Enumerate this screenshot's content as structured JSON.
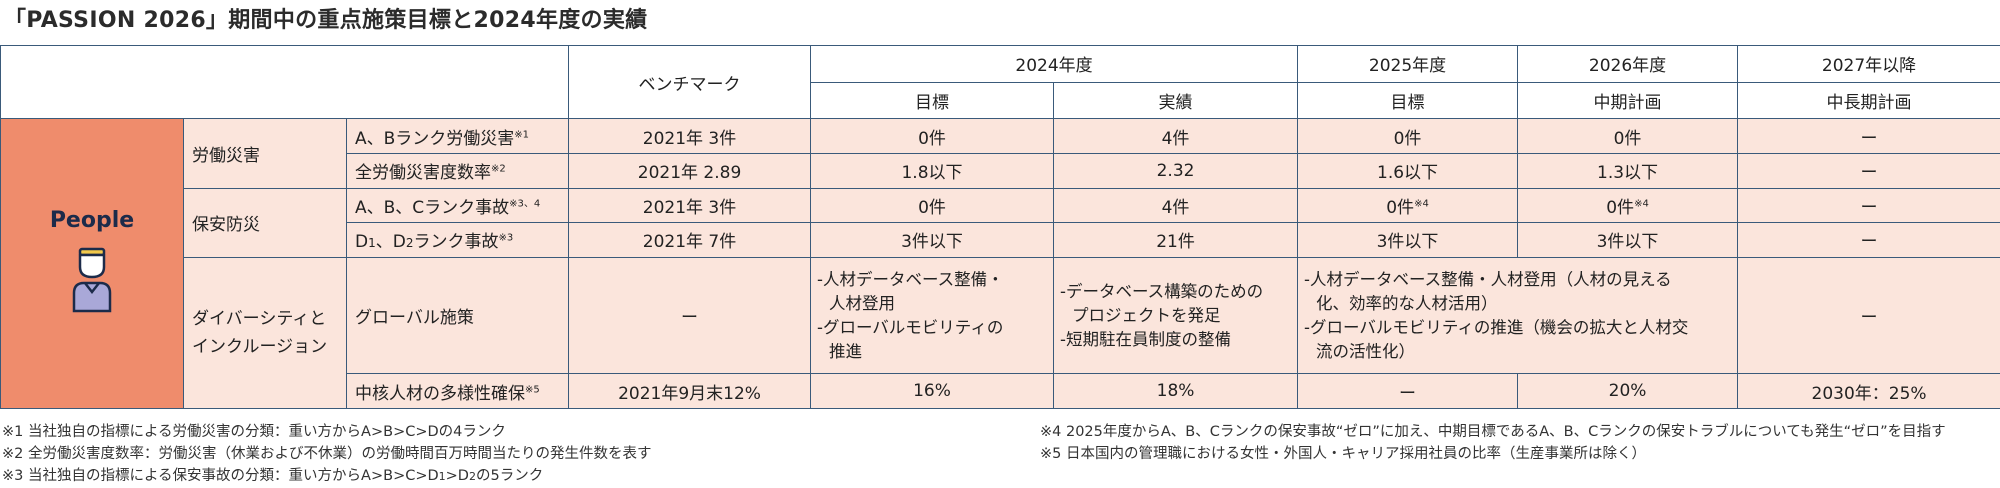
{
  "title": "「PASSION 2026」期間中の重点施策目標と2024年度の実績",
  "header": {
    "benchmark": "ベンチマーク",
    "fy2024": "2024年度",
    "fy2025": "2025年度",
    "fy2026": "2026年度",
    "fy2027": "2027年以降",
    "target": "目標",
    "actual": "実績",
    "target_2025": "目標",
    "midterm_plan": "中期計画",
    "longterm_plan": "中長期計画"
  },
  "category": {
    "label": "People",
    "icon": "person-icon"
  },
  "groups": {
    "labor_accident": "労働災害",
    "security": "保安防災",
    "dei_line1": "ダイバーシティと",
    "dei_line2": "インクルージョン"
  },
  "rows": {
    "r1": {
      "item": "A、Bランク労働災害",
      "note": "※1",
      "benchmark": "2021年 3件",
      "target": "0件",
      "actual": "4件",
      "fy2025": "0件",
      "fy2026": "0件",
      "fy2027": "ー"
    },
    "r2": {
      "item": "全労働災害度数率",
      "note": "※2",
      "benchmark": "2021年 2.89",
      "target": "1.8以下",
      "actual": "2.32",
      "fy2025": "1.6以下",
      "fy2026": "1.3以下",
      "fy2027": "ー"
    },
    "r3": {
      "item": "A、B、Cランク事故",
      "note": "※3、4",
      "benchmark": "2021年 3件",
      "target": "0件",
      "actual": "4件",
      "fy2025": "0件",
      "fy2025_note": "※4",
      "fy2026": "0件",
      "fy2026_note": "※4",
      "fy2027": "ー"
    },
    "r4": {
      "item_d1": "D",
      "item_sub1": "1",
      "item_sep": "、D",
      "item_sub2": "2",
      "item_rest": "ランク事故",
      "note": "※3",
      "benchmark": "2021年 7件",
      "target": "3件以下",
      "actual": "21件",
      "fy2025": "3件以下",
      "fy2026": "3件以下",
      "fy2027": "ー"
    },
    "r5": {
      "item": "グローバル施策",
      "benchmark": "ー",
      "target": [
        "-人材データベース整備・",
        "人材登用",
        "-グローバルモビリティの",
        "推進"
      ],
      "actual": [
        "-データベース構築のための",
        "プロジェクトを発足",
        "-短期駐在員制度の整備"
      ],
      "plan": [
        "-人材データベース整備・人材登用（人材の見える",
        "化、効率的な人材活用）",
        "-グローバルモビリティの推進（機会の拡大と人材交",
        "流の活性化）"
      ],
      "fy2027": "ー"
    },
    "r6": {
      "item": "中核人材の多様性確保",
      "note": "※5",
      "benchmark": "2021年9月末12%",
      "target": "16%",
      "actual": "18%",
      "fy2025": "ー",
      "fy2026": "20%",
      "fy2027": "2030年：25%"
    }
  },
  "footnotes": {
    "n1": "※1 当社独自の指標による労働災害の分類：重い方からA>B>C>Dの4ランク",
    "n2": "※2 全労働災害度数率：労働災害（休業および不休業）の労働時間百万時間当たりの発生件数を表す",
    "n3_pre": "※3 当社独自の指標による保安事故の分類：重い方からA>B>C>D",
    "n3_sub1": "1",
    "n3_mid": ">D",
    "n3_sub2": "2",
    "n3_post": "の5ランク",
    "n4": "※4 2025年度からA、B、Cランクの保安事故“ゼロ”に加え、中期目標であるA、B、Cランクの保安トラブルについても発生“ゼロ”を目指す",
    "n5": "※5 日本国内の管理職における女性・外国人・キャリア採用社員の比率（生産事業所は除く）"
  },
  "colors": {
    "people_band": "#ef8c6c",
    "cell_fill": "#fbe5dc",
    "border": "#3a5a7a",
    "icon_head": "#f2c94c",
    "icon_body": "#a9a8d8"
  }
}
